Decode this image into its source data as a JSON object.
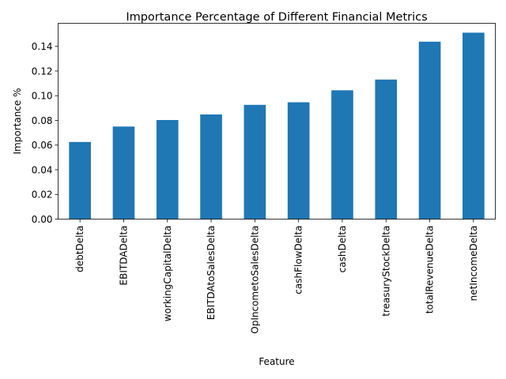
{
  "chart_data": {
    "type": "bar",
    "title": "Importance Percentage of Different Financial Metrics",
    "xlabel": "Feature",
    "ylabel": "Importance %",
    "categories": [
      "debtDelta",
      "EBITDADelta",
      "workingCapitalDelta",
      "EBITDAtoSalesDelta",
      "OpIncometoSalesDelta",
      "cashFlowDelta",
      "cashDelta",
      "treasuryStockDelta",
      "totalRevenueDelta",
      "netIncomeDelta"
    ],
    "values": [
      0.0625,
      0.075,
      0.0803,
      0.0848,
      0.0926,
      0.0947,
      0.1044,
      0.1131,
      0.1438,
      0.1511
    ],
    "ylim": [
      0,
      0.1587
    ],
    "yticks": [
      "0.00",
      "0.02",
      "0.04",
      "0.06",
      "0.08",
      "0.10",
      "0.12",
      "0.14"
    ],
    "bar_color": "#1f77b4",
    "grid": false,
    "legend": "none"
  }
}
